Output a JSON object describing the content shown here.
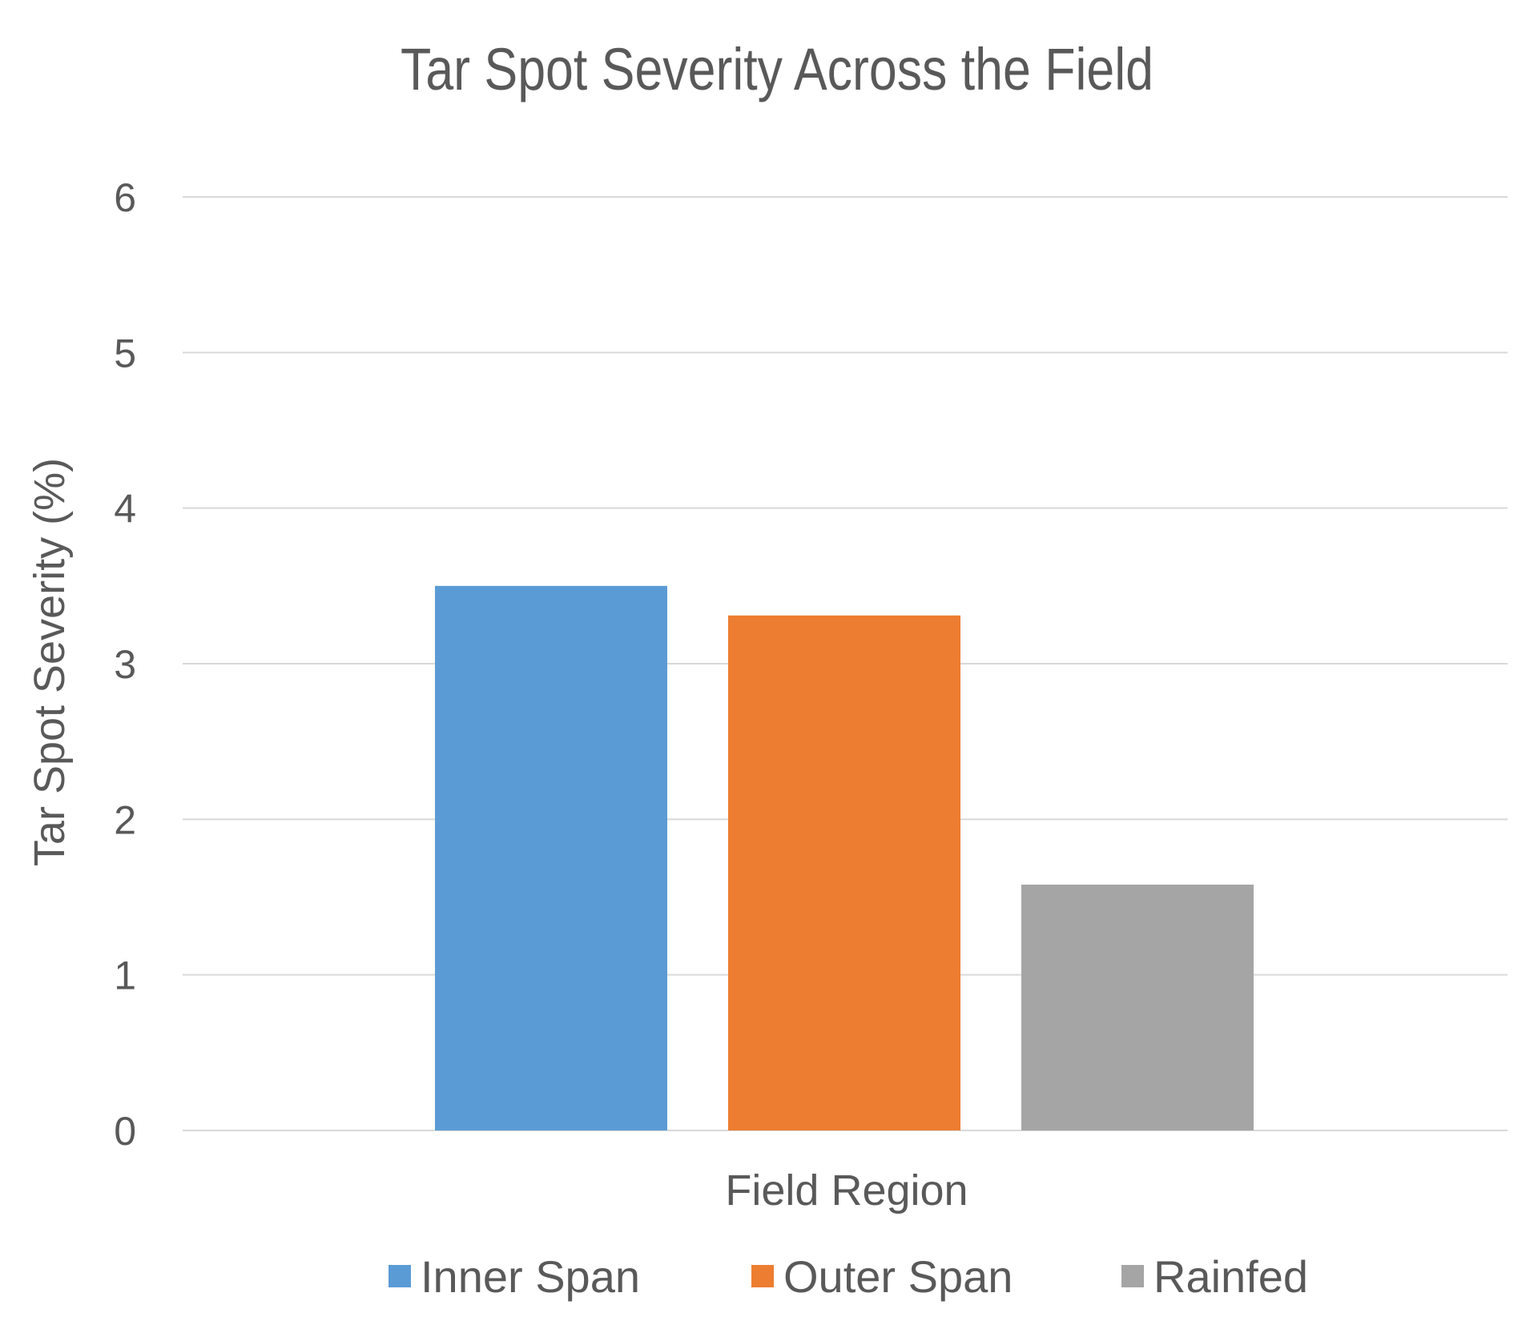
{
  "chart_data": {
    "type": "bar",
    "title": "Tar Spot Severity Across the Field",
    "xlabel": "Field Region",
    "ylabel": "Tar Spot Severity (%)",
    "ylim": [
      0,
      6
    ],
    "yticks": [
      0,
      1,
      2,
      3,
      4,
      5,
      6
    ],
    "grid": true,
    "legend_position": "bottom",
    "categories": [
      ""
    ],
    "series": [
      {
        "name": "Inner Span",
        "values": [
          3.5
        ],
        "color": "#5b9bd5"
      },
      {
        "name": "Outer Span",
        "values": [
          3.31
        ],
        "color": "#ed7d31"
      },
      {
        "name": "Rainfed",
        "values": [
          1.58
        ],
        "color": "#a5a5a5"
      }
    ]
  }
}
